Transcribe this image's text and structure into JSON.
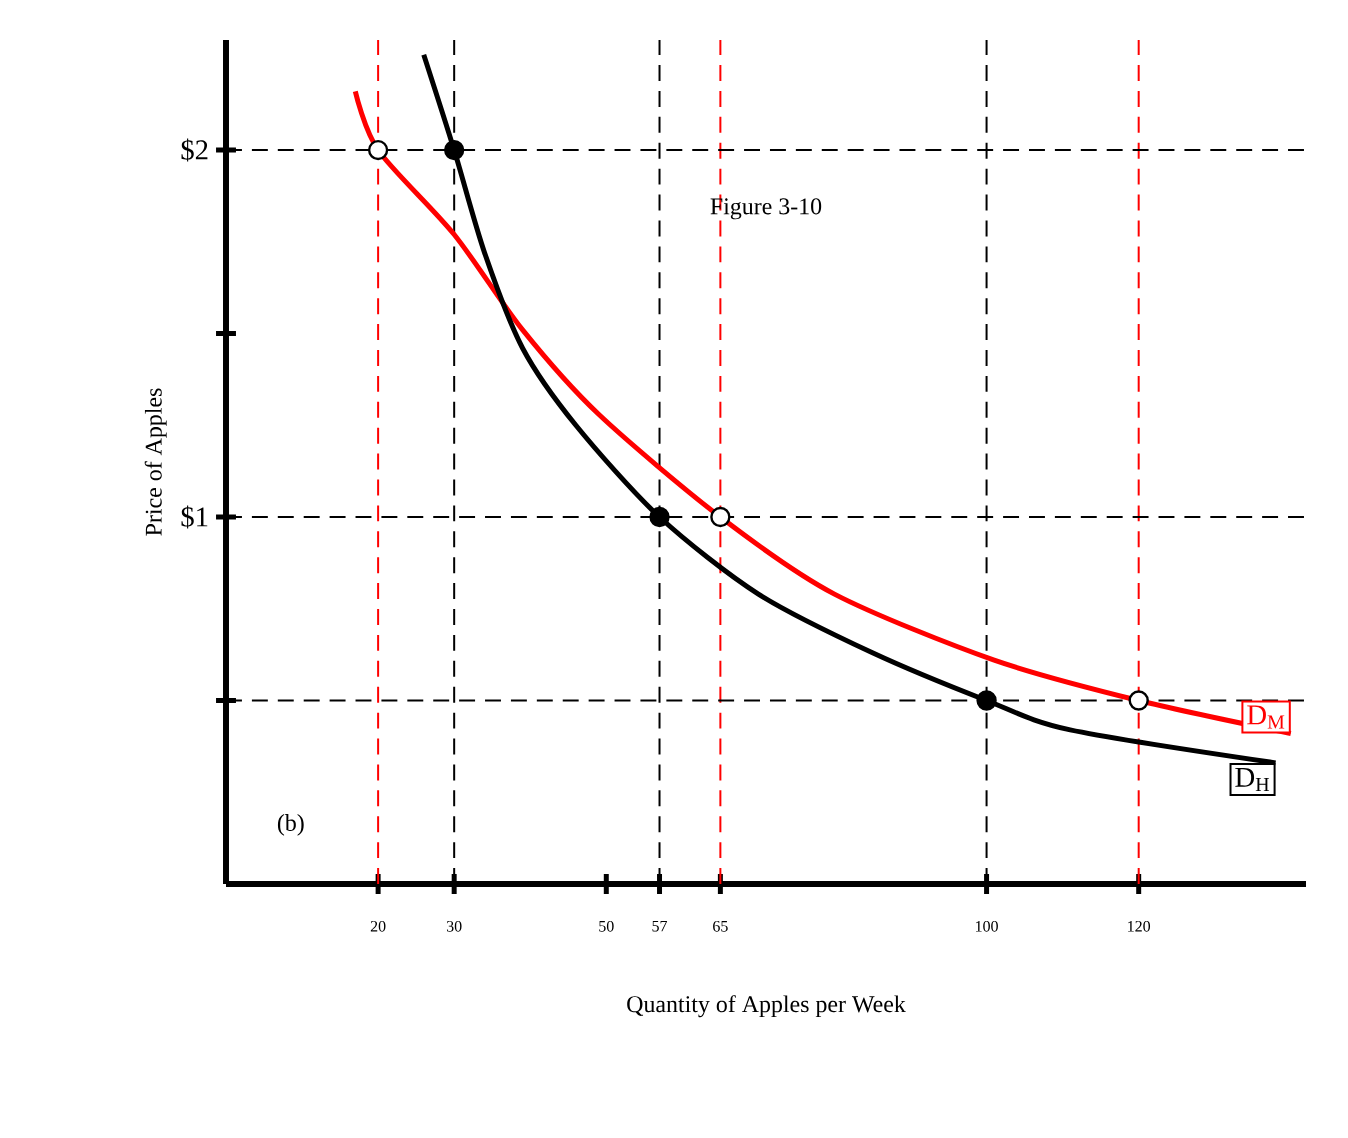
{
  "chart_data": {
    "type": "line",
    "xlabel": "Quantity of Apples per Week",
    "ylabel": "Price of Apples",
    "xlim": [
      0,
      142
    ],
    "ylim": [
      0,
      2.3
    ],
    "xticks": [
      20,
      30,
      50,
      57,
      65,
      100,
      120
    ],
    "yticks": [
      {
        "value": 0.5,
        "label": null
      },
      {
        "value": 1,
        "label": "$1"
      },
      {
        "value": 1.5,
        "label": null
      },
      {
        "value": 2,
        "label": "$2"
      }
    ],
    "series": [
      {
        "name": "D$_{M}$",
        "color": "#ff0000",
        "x": [
          17,
          20,
          30,
          39,
          49,
          65,
          80,
          101,
          120,
          140
        ],
        "values": [
          2.16,
          2.0,
          1.77,
          1.51,
          1.28,
          1.0,
          0.79,
          0.61,
          0.5,
          0.41
        ]
      },
      {
        "name": "D$_{H}$",
        "color": "#000000",
        "x": [
          26,
          30,
          34,
          39,
          46,
          57,
          70,
          85,
          100,
          111,
          138
        ],
        "values": [
          2.26,
          2.0,
          1.72,
          1.46,
          1.25,
          1.0,
          0.79,
          0.63,
          0.5,
          0.42,
          0.33
        ]
      },
      {
        "type": "scatter",
        "marker": "circle",
        "color": "#ffffff",
        "x": [
          20,
          65,
          120
        ],
        "values": [
          2,
          1,
          0.5
        ]
      },
      {
        "type": "scatter",
        "marker": "circle",
        "color": "#000000",
        "x": [
          30,
          57,
          100
        ],
        "values": [
          2,
          1,
          0.5
        ]
      }
    ],
    "ref_lines": [
      {
        "axis": "x",
        "value": 20,
        "color": "#ff0000",
        "line_style": "dashed"
      },
      {
        "axis": "x",
        "value": 65,
        "color": "#ff0000",
        "line_style": "dashed"
      },
      {
        "axis": "x",
        "value": 120,
        "color": "#ff0000",
        "line_style": "dashed"
      },
      {
        "axis": "x",
        "value": 30,
        "color": "#000000",
        "line_style": "dashed"
      },
      {
        "axis": "x",
        "value": 57,
        "color": "#000000",
        "line_style": "dashed"
      },
      {
        "axis": "x",
        "value": 100,
        "color": "#000000",
        "line_style": "dashed"
      },
      {
        "axis": "y",
        "value": 2,
        "color": "#000000",
        "line_style": "dashed"
      },
      {
        "axis": "y",
        "value": 1,
        "color": "#000000",
        "line_style": "dashed"
      },
      {
        "axis": "y",
        "value": 0.5,
        "color": "#000000",
        "line_style": "dashed"
      }
    ],
    "annotations": [
      "Figure 3-10",
      "(b)"
    ],
    "grid": false
  }
}
